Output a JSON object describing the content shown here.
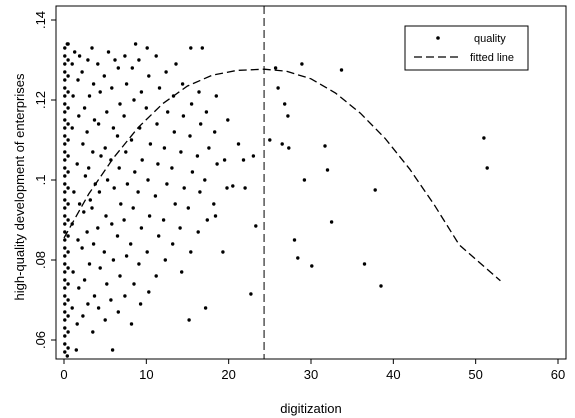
{
  "chart_data": {
    "type": "scatter",
    "title": "",
    "xlabel": "digitization",
    "ylabel": "high-quality development of enterprises",
    "xlim": [
      0,
      60
    ],
    "ylim": [
      0.055,
      0.14
    ],
    "xticks": [
      0,
      10,
      20,
      30,
      40,
      50,
      60
    ],
    "xtick_labels": [
      "0",
      "10",
      "20",
      "30",
      "40",
      "50",
      "60"
    ],
    "yticks": [
      0.06,
      0.08,
      0.1,
      0.12,
      0.14
    ],
    "ytick_labels": [
      ".06",
      ".08",
      ".1",
      ".12",
      ".14"
    ],
    "grid": false,
    "legend": {
      "position": "top-right",
      "entries": [
        "quality",
        "fitted line"
      ]
    },
    "vline_x": 24.3,
    "fitted_line": {
      "points": [
        [
          0,
          0.0855
        ],
        [
          3,
          0.0965
        ],
        [
          6,
          0.1055
        ],
        [
          9,
          0.1131
        ],
        [
          12,
          0.1191
        ],
        [
          15,
          0.1235
        ],
        [
          18,
          0.1262
        ],
        [
          21,
          0.1274
        ],
        [
          24.3,
          0.1277
        ],
        [
          27,
          0.1272
        ],
        [
          30,
          0.1253
        ],
        [
          33,
          0.1217
        ],
        [
          36,
          0.1167
        ],
        [
          39,
          0.1104
        ],
        [
          42,
          0.1027
        ],
        [
          45,
          0.0937
        ],
        [
          48,
          0.0838
        ],
        [
          53,
          0.0748
        ]
      ]
    },
    "series": [
      {
        "name": "quality",
        "points": [
          [
            0.1,
            0.057
          ],
          [
            0.1,
            0.059
          ],
          [
            0.1,
            0.061
          ],
          [
            0.1,
            0.063
          ],
          [
            0.1,
            0.065
          ],
          [
            0.1,
            0.067
          ],
          [
            0.1,
            0.069
          ],
          [
            0.1,
            0.071
          ],
          [
            0.1,
            0.073
          ],
          [
            0.1,
            0.075
          ],
          [
            0.1,
            0.077
          ],
          [
            0.1,
            0.079
          ],
          [
            0.1,
            0.081
          ],
          [
            0.1,
            0.083
          ],
          [
            0.1,
            0.085
          ],
          [
            0.1,
            0.087
          ],
          [
            0.1,
            0.089
          ],
          [
            0.1,
            0.091
          ],
          [
            0.1,
            0.093
          ],
          [
            0.1,
            0.095
          ],
          [
            0.1,
            0.097
          ],
          [
            0.1,
            0.099
          ],
          [
            0.1,
            0.101
          ],
          [
            0.1,
            0.103
          ],
          [
            0.1,
            0.105
          ],
          [
            0.1,
            0.107
          ],
          [
            0.1,
            0.109
          ],
          [
            0.1,
            0.111
          ],
          [
            0.1,
            0.113
          ],
          [
            0.1,
            0.115
          ],
          [
            0.1,
            0.117
          ],
          [
            0.1,
            0.119
          ],
          [
            0.1,
            0.121
          ],
          [
            0.1,
            0.123
          ],
          [
            0.1,
            0.125
          ],
          [
            0.1,
            0.127
          ],
          [
            0.1,
            0.129
          ],
          [
            0.1,
            0.131
          ],
          [
            0.1,
            0.133
          ],
          [
            0.5,
            0.058
          ],
          [
            0.5,
            0.062
          ],
          [
            0.5,
            0.066
          ],
          [
            0.5,
            0.07
          ],
          [
            0.5,
            0.074
          ],
          [
            0.5,
            0.078
          ],
          [
            0.5,
            0.082
          ],
          [
            0.5,
            0.086
          ],
          [
            0.5,
            0.09
          ],
          [
            0.5,
            0.094
          ],
          [
            0.5,
            0.098
          ],
          [
            0.5,
            0.102
          ],
          [
            0.5,
            0.106
          ],
          [
            0.5,
            0.11
          ],
          [
            0.5,
            0.114
          ],
          [
            0.5,
            0.118
          ],
          [
            0.5,
            0.122
          ],
          [
            0.5,
            0.126
          ],
          [
            0.5,
            0.13
          ],
          [
            0.5,
            0.134
          ],
          [
            0.4,
            0.056
          ],
          [
            0.4,
            0.134
          ],
          [
            1.5,
            0.0575
          ],
          [
            1.0,
            0.068
          ],
          [
            1.1,
            0.077
          ],
          [
            1.0,
            0.089
          ],
          [
            1.2,
            0.097
          ],
          [
            1.0,
            0.113
          ],
          [
            1.1,
            0.121
          ],
          [
            1.0,
            0.129
          ],
          [
            1.3,
            0.132
          ],
          [
            1.6,
            0.064
          ],
          [
            1.8,
            0.073
          ],
          [
            1.7,
            0.085
          ],
          [
            1.9,
            0.094
          ],
          [
            1.6,
            0.104
          ],
          [
            1.8,
            0.116
          ],
          [
            1.7,
            0.125
          ],
          [
            1.9,
            0.131
          ],
          [
            2.3,
            0.066
          ],
          [
            2.5,
            0.075
          ],
          [
            2.2,
            0.083
          ],
          [
            2.4,
            0.092
          ],
          [
            2.6,
            0.101
          ],
          [
            2.3,
            0.109
          ],
          [
            2.5,
            0.118
          ],
          [
            2.2,
            0.127
          ],
          [
            2.9,
            0.069
          ],
          [
            3.1,
            0.079
          ],
          [
            2.8,
            0.087
          ],
          [
            3.2,
            0.095
          ],
          [
            3.0,
            0.103
          ],
          [
            2.8,
            0.112
          ],
          [
            3.1,
            0.121
          ],
          [
            2.9,
            0.13
          ],
          [
            3.5,
            0.062
          ],
          [
            3.7,
            0.071
          ],
          [
            3.6,
            0.084
          ],
          [
            3.4,
            0.093
          ],
          [
            3.8,
            0.099
          ],
          [
            3.5,
            0.107
          ],
          [
            3.7,
            0.115
          ],
          [
            3.6,
            0.124
          ],
          [
            3.4,
            0.133
          ],
          [
            4.2,
            0.068
          ],
          [
            4.4,
            0.078
          ],
          [
            4.1,
            0.088
          ],
          [
            4.3,
            0.097
          ],
          [
            4.5,
            0.106
          ],
          [
            4.2,
            0.114
          ],
          [
            4.4,
            0.122
          ],
          [
            4.1,
            0.129
          ],
          [
            5.0,
            0.065
          ],
          [
            5.2,
            0.074
          ],
          [
            4.9,
            0.082
          ],
          [
            5.1,
            0.091
          ],
          [
            5.3,
            0.1
          ],
          [
            5.0,
            0.108
          ],
          [
            5.2,
            0.117
          ],
          [
            4.9,
            0.126
          ],
          [
            5.4,
            0.132
          ],
          [
            5.9,
            0.0575
          ],
          [
            5.7,
            0.07
          ],
          [
            6.0,
            0.08
          ],
          [
            5.8,
            0.089
          ],
          [
            6.1,
            0.098
          ],
          [
            5.7,
            0.105
          ],
          [
            6.0,
            0.113
          ],
          [
            5.8,
            0.123
          ],
          [
            6.2,
            0.13
          ],
          [
            6.6,
            0.067
          ],
          [
            6.8,
            0.076
          ],
          [
            6.5,
            0.086
          ],
          [
            6.9,
            0.094
          ],
          [
            6.7,
            0.103
          ],
          [
            6.5,
            0.111
          ],
          [
            6.8,
            0.119
          ],
          [
            6.6,
            0.128
          ],
          [
            7.4,
            0.071
          ],
          [
            7.6,
            0.081
          ],
          [
            7.3,
            0.09
          ],
          [
            7.7,
            0.099
          ],
          [
            7.5,
            0.107
          ],
          [
            7.3,
            0.116
          ],
          [
            7.6,
            0.124
          ],
          [
            7.4,
            0.131
          ],
          [
            8.2,
            0.064
          ],
          [
            8.5,
            0.074
          ],
          [
            8.1,
            0.084
          ],
          [
            8.4,
            0.093
          ],
          [
            8.6,
            0.102
          ],
          [
            8.2,
            0.11
          ],
          [
            8.5,
            0.12
          ],
          [
            8.3,
            0.128
          ],
          [
            8.7,
            0.134
          ],
          [
            9.3,
            0.069
          ],
          [
            9.1,
            0.079
          ],
          [
            9.4,
            0.088
          ],
          [
            9.0,
            0.097
          ],
          [
            9.5,
            0.105
          ],
          [
            9.2,
            0.113
          ],
          [
            9.4,
            0.122
          ],
          [
            9.1,
            0.13
          ],
          [
            10.3,
            0.072
          ],
          [
            10.1,
            0.082
          ],
          [
            10.4,
            0.091
          ],
          [
            10.2,
            0.1
          ],
          [
            10.5,
            0.109
          ],
          [
            10.0,
            0.118
          ],
          [
            10.3,
            0.126
          ],
          [
            10.1,
            0.133
          ],
          [
            11.2,
            0.076
          ],
          [
            11.5,
            0.086
          ],
          [
            11.1,
            0.096
          ],
          [
            11.4,
            0.104
          ],
          [
            11.3,
            0.114
          ],
          [
            11.6,
            0.123
          ],
          [
            11.2,
            0.131
          ],
          [
            12.3,
            0.08
          ],
          [
            12.1,
            0.09
          ],
          [
            12.5,
            0.099
          ],
          [
            12.2,
            0.108
          ],
          [
            12.6,
            0.117
          ],
          [
            12.4,
            0.127
          ],
          [
            13.2,
            0.084
          ],
          [
            13.5,
            0.094
          ],
          [
            13.1,
            0.103
          ],
          [
            13.4,
            0.112
          ],
          [
            13.3,
            0.121
          ],
          [
            13.6,
            0.129
          ],
          [
            14.3,
            0.077
          ],
          [
            14.1,
            0.088
          ],
          [
            14.6,
            0.098
          ],
          [
            14.2,
            0.107
          ],
          [
            14.5,
            0.116
          ],
          [
            14.4,
            0.124
          ],
          [
            15.2,
            0.065
          ],
          [
            15.4,
            0.082
          ],
          [
            15.1,
            0.093
          ],
          [
            15.6,
            0.102
          ],
          [
            15.3,
            0.111
          ],
          [
            15.5,
            0.119
          ],
          [
            15.4,
            0.133
          ],
          [
            16.3,
            0.087
          ],
          [
            16.5,
            0.097
          ],
          [
            16.2,
            0.106
          ],
          [
            16.6,
            0.114
          ],
          [
            16.4,
            0.122
          ],
          [
            16.8,
            0.133
          ],
          [
            17.2,
            0.068
          ],
          [
            17.4,
            0.09
          ],
          [
            17.1,
            0.1
          ],
          [
            17.6,
            0.108
          ],
          [
            17.3,
            0.117
          ],
          [
            18.4,
            0.091
          ],
          [
            18.2,
            0.094
          ],
          [
            18.6,
            0.104
          ],
          [
            18.3,
            0.112
          ],
          [
            18.5,
            0.121
          ],
          [
            19.3,
            0.082
          ],
          [
            19.8,
            0.098
          ],
          [
            19.5,
            0.105
          ],
          [
            19.9,
            0.115
          ],
          [
            20.5,
            0.0985
          ],
          [
            21.2,
            0.109
          ],
          [
            21.8,
            0.105
          ],
          [
            22.0,
            0.098
          ],
          [
            22.7,
            0.0715
          ],
          [
            23.0,
            0.106
          ],
          [
            23.3,
            0.0885
          ],
          [
            25.0,
            0.11
          ],
          [
            25.7,
            0.128
          ],
          [
            26.0,
            0.123
          ],
          [
            26.5,
            0.109
          ],
          [
            26.8,
            0.119
          ],
          [
            27.2,
            0.116
          ],
          [
            27.3,
            0.108
          ],
          [
            28.0,
            0.085
          ],
          [
            28.4,
            0.0805
          ],
          [
            28.9,
            0.129
          ],
          [
            29.2,
            0.1
          ],
          [
            30.1,
            0.0785
          ],
          [
            31.7,
            0.1085
          ],
          [
            32.0,
            0.1025
          ],
          [
            32.5,
            0.0895
          ],
          [
            33.7,
            0.1275
          ],
          [
            36.5,
            0.079
          ],
          [
            37.8,
            0.0975
          ],
          [
            38.5,
            0.0735
          ],
          [
            51.0,
            0.1105
          ],
          [
            51.4,
            0.103
          ]
        ]
      }
    ]
  }
}
